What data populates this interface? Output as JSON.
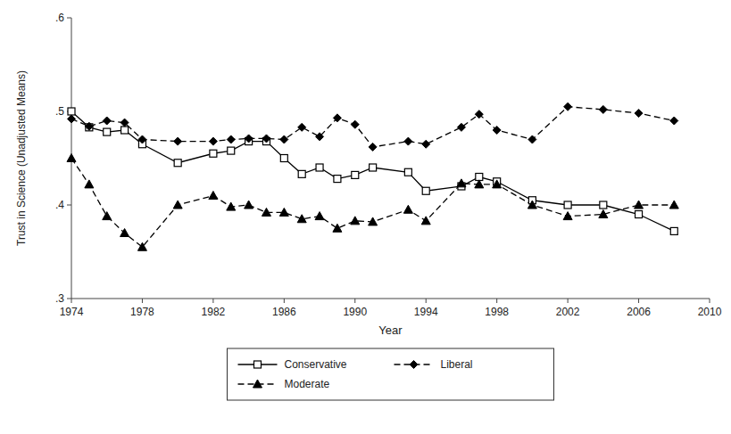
{
  "chart_data": {
    "type": "line",
    "xlabel": "Year",
    "ylabel": "Trust in Science (Unadjusted Means)",
    "x": [
      1974,
      1975,
      1976,
      1977,
      1978,
      1980,
      1982,
      1983,
      1984,
      1985,
      1986,
      1987,
      1988,
      1989,
      1990,
      1991,
      1993,
      1994,
      1996,
      1997,
      1998,
      2000,
      2002,
      2004,
      2006,
      2008
    ],
    "series": [
      {
        "name": "Conservative",
        "color": "#000000",
        "marker": "square-open",
        "line_style": "solid",
        "values": [
          0.5,
          0.483,
          0.478,
          0.48,
          0.465,
          0.445,
          0.455,
          0.458,
          0.468,
          0.468,
          0.45,
          0.433,
          0.44,
          0.428,
          0.432,
          0.44,
          0.435,
          0.415,
          0.42,
          0.43,
          0.425,
          0.405,
          0.4,
          0.4,
          0.39,
          0.372
        ]
      },
      {
        "name": "Liberal",
        "color": "#000000",
        "marker": "diamond",
        "line_style": "dashed",
        "values": [
          0.492,
          0.484,
          0.49,
          0.488,
          0.47,
          0.468,
          0.468,
          0.47,
          0.471,
          0.471,
          0.47,
          0.483,
          0.473,
          0.493,
          0.486,
          0.462,
          0.468,
          0.465,
          0.483,
          0.497,
          0.48,
          0.47,
          0.505,
          0.502,
          0.498,
          0.49
        ]
      },
      {
        "name": "Moderate",
        "color": "#000000",
        "marker": "triangle",
        "line_style": "dashed",
        "values": [
          0.45,
          0.422,
          0.388,
          0.37,
          0.355,
          0.4,
          0.41,
          0.398,
          0.4,
          0.392,
          0.392,
          0.385,
          0.388,
          0.375,
          0.383,
          0.382,
          0.395,
          0.383,
          0.423,
          0.422,
          0.422,
          0.4,
          0.388,
          0.39,
          0.4,
          0.4
        ]
      }
    ],
    "xlim": [
      1974,
      2010
    ],
    "xticks": [
      1974,
      1978,
      1982,
      1986,
      1990,
      1994,
      1998,
      2002,
      2006,
      2010
    ],
    "ylim": [
      0.3,
      0.6
    ],
    "yticks": [
      {
        "value": 0.3,
        "label": ".3"
      },
      {
        "value": 0.4,
        "label": ".4"
      },
      {
        "value": 0.5,
        "label": ".5"
      },
      {
        "value": 0.6,
        "label": ".6"
      }
    ],
    "grid": false,
    "legend": "bottom"
  }
}
